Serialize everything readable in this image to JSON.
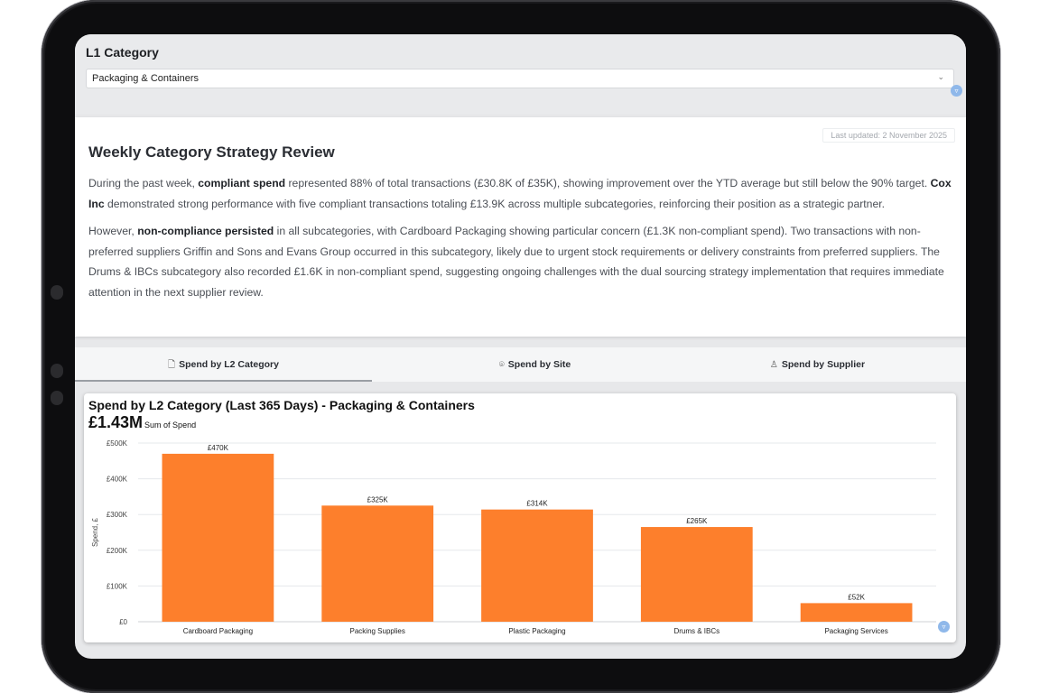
{
  "filter": {
    "title": "L1 Category",
    "selected": "Packaging & Containers",
    "chevron_icon": "chevron-down-icon"
  },
  "review": {
    "last_updated": "Last updated: 2 November 2025",
    "title": "Weekly Category Strategy Review",
    "p1": [
      "During the past week, ",
      "compliant spend",
      " represented 88% of total transactions (£30.8K of £35K), showing improvement over the YTD average but still below the 90% target. ",
      "Cox Inc",
      " demonstrated strong performance with five compliant transactions totaling £13.9K across multiple subcategories, reinforcing their position as a strategic partner."
    ],
    "p2": [
      "However, ",
      "non-compliance persisted",
      " in all subcategories, with Cardboard Packaging showing particular concern (£1.3K non-compliant spend). Two transactions with non-preferred suppliers Griffin and Sons and Evans Group occurred in this subcategory, likely due to urgent stock requirements or delivery constraints from preferred suppliers. The Drums & IBCs subcategory also recorded £1.6K in non-compliant spend, suggesting ongoing challenges with the dual sourcing strategy implementation that requires immediate attention in the next supplier review."
    ]
  },
  "tabs": [
    {
      "label": "Spend by L2 Category",
      "icon": "document-icon",
      "glyph": "🗋",
      "active": true
    },
    {
      "label": "Spend by Site",
      "icon": "location-pin-icon",
      "glyph": "⌾",
      "active": false
    },
    {
      "label": "Spend by Supplier",
      "icon": "person-icon",
      "glyph": "♙",
      "active": false
    }
  ],
  "chart": {
    "title": "Spend by L2 Category (Last 365 Days) - Packaging & Containers",
    "total": "£1.43M",
    "total_label": "Sum of Spend",
    "bar_color": "#fd7f2c"
  },
  "chart_data": {
    "type": "bar",
    "categories": [
      "Cardboard Packaging",
      "Packing Supplies",
      "Plastic Packaging",
      "Drums & IBCs",
      "Packaging Services"
    ],
    "values": [
      470,
      325,
      314,
      265,
      52
    ],
    "data_labels": [
      "£470K",
      "£325K",
      "£314K",
      "£265K",
      "£52K"
    ],
    "ylabel": "Spend, £",
    "yticks": [
      "£0",
      "£100K",
      "£200K",
      "£300K",
      "£400K",
      "£500K"
    ],
    "ylim": [
      0,
      500
    ],
    "grid": true
  }
}
